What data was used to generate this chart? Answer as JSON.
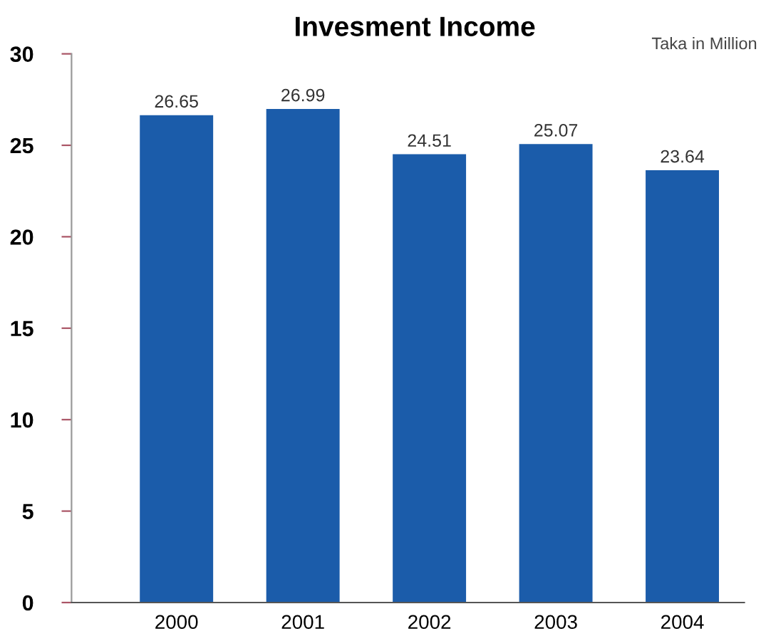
{
  "chart_data": {
    "type": "bar",
    "title": "Invesment Income",
    "annotations": [
      "Taka in Million"
    ],
    "categories": [
      "2000",
      "2001",
      "2002",
      "2003",
      "2004"
    ],
    "values": [
      26.65,
      26.99,
      24.51,
      25.07,
      23.64
    ],
    "color": "#1b5caa",
    "ylim": [
      0,
      30
    ],
    "yticks": [
      0,
      5,
      10,
      15,
      20,
      25,
      30
    ],
    "grid": false,
    "data_labels": true
  }
}
